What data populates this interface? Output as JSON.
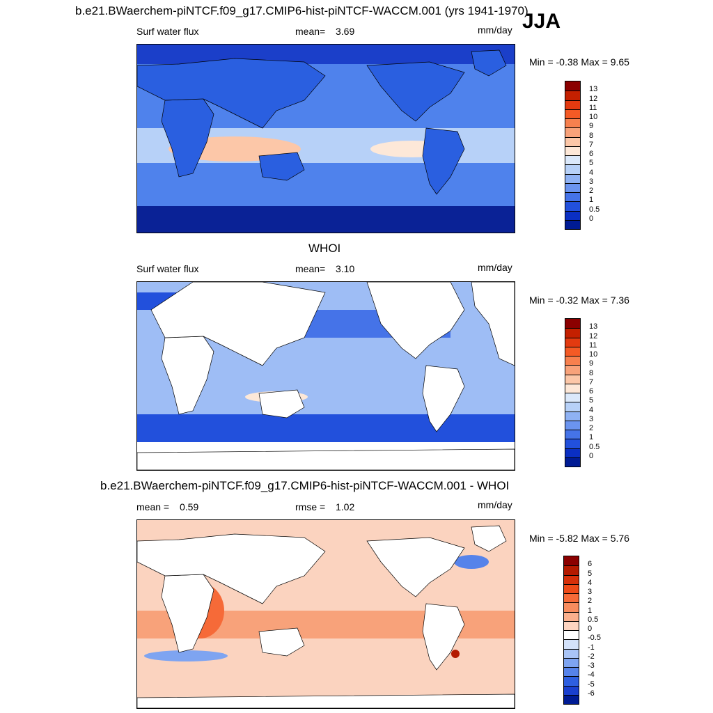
{
  "header": {
    "title": "b.e21.BWaerchem-piNTCF.f09_g17.CMIP6-hist-piNTCF-WACCM.001 (yrs 1941-1970)",
    "season": "JJA"
  },
  "panels": [
    {
      "variable": "Surf water flux",
      "stat_label": "mean=",
      "stat_value": "3.69",
      "units": "mm/day",
      "minmax": "Min =  -0.38 Max =   9.65",
      "colorbar_labels": [
        "13",
        "12",
        "11",
        "10",
        "9",
        "8",
        "7",
        "6",
        "5",
        "4",
        "3",
        "2",
        "1",
        "0.5",
        "0"
      ],
      "colorbar_colors": [
        "#8b0000",
        "#c42000",
        "#e33a10",
        "#f45a25",
        "#f7804e",
        "#f8a27a",
        "#fcc7a8",
        "#fde8d8",
        "#dbe9fb",
        "#b7d1f8",
        "#8fb2f4",
        "#6b94ef",
        "#4573e8",
        "#2250dc",
        "#0a2fc3",
        "#001b94"
      ],
      "ocean_color": "#4f82ec",
      "land_color": "#2a5fe0"
    },
    {
      "subtitle": "WHOI",
      "variable": "Surf water flux",
      "stat_label": "mean=",
      "stat_value": "3.10",
      "units": "mm/day",
      "minmax": "Min =  -0.32 Max =   7.36",
      "colorbar_labels": [
        "13",
        "12",
        "11",
        "10",
        "9",
        "8",
        "7",
        "6",
        "5",
        "4",
        "3",
        "2",
        "1",
        "0.5",
        "0"
      ],
      "colorbar_colors": [
        "#8b0000",
        "#c42000",
        "#e33a10",
        "#f45a25",
        "#f7804e",
        "#f8a27a",
        "#fcc7a8",
        "#fde8d8",
        "#dbe9fb",
        "#b7d1f8",
        "#8fb2f4",
        "#6b94ef",
        "#4573e8",
        "#2250dc",
        "#0a2fc3",
        "#001b94"
      ],
      "ocean_color": "#9ebdf5",
      "land_color": "#ffffff"
    },
    {
      "subtitle": "b.e21.BWaerchem-piNTCF.f09_g17.CMIP6-hist-piNTCF-WACCM.001 - WHOI",
      "stat_label": "mean =",
      "stat_value": "0.59",
      "stat2_label": "rmse =",
      "stat2_value": "1.02",
      "units": "mm/day",
      "minmax": "Min =  -5.82 Max =   5.76",
      "colorbar_labels": [
        "6",
        "5",
        "4",
        "3",
        "2",
        "1",
        "0.5",
        "0",
        "-0.5",
        "-1",
        "-2",
        "-3",
        "-4",
        "-5",
        "-6"
      ],
      "colorbar_colors": [
        "#8b0000",
        "#b41a00",
        "#d6300a",
        "#ee4a18",
        "#f66a38",
        "#f88c5e",
        "#fbb08d",
        "#fdd4c0",
        "#ffffff",
        "#d3e2fb",
        "#a9c4f6",
        "#7ea4f1",
        "#5683ea",
        "#2e5fe0",
        "#1a40cf",
        "#001b94"
      ],
      "ocean_color": "#fbd3bf",
      "land_color": "#ffffff"
    }
  ]
}
